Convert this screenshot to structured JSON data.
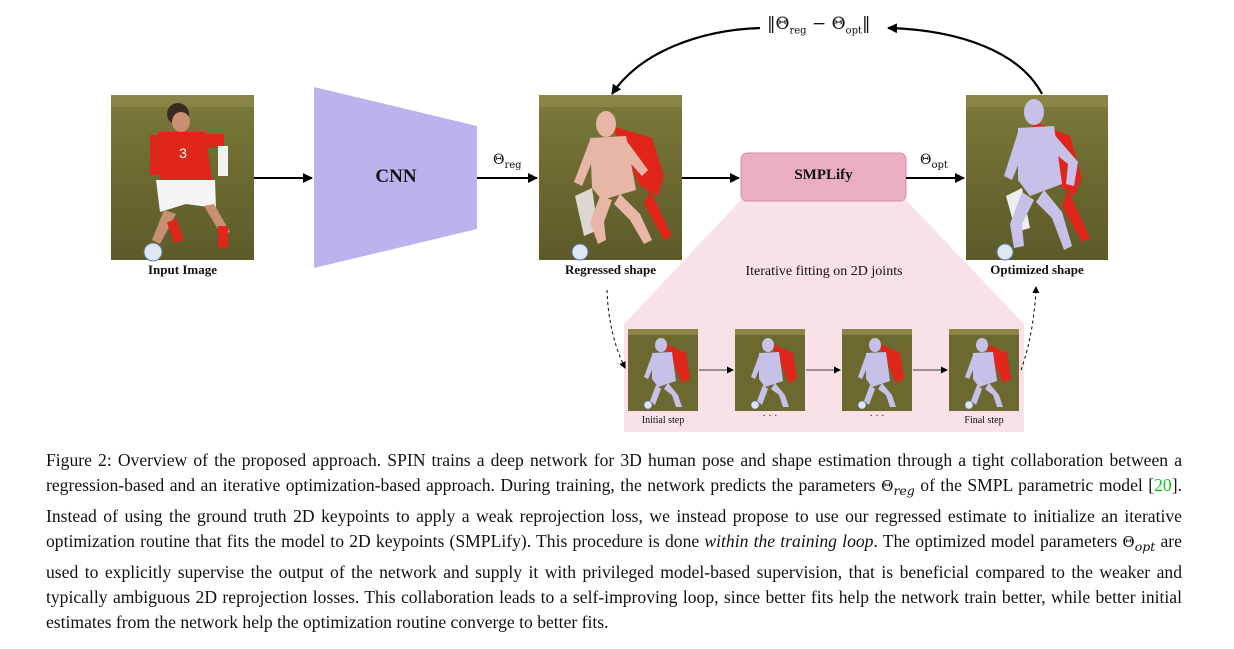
{
  "figure": {
    "input_label": "Input Image",
    "cnn_label": "CNN",
    "theta_reg_label": {
      "main": "Θ",
      "sub": "reg"
    },
    "regressed_label": "Regressed shape",
    "smplify_label": "SMPLify",
    "theta_opt_label": {
      "main": "Θ",
      "sub": "opt"
    },
    "optimized_label": "Optimized shape",
    "loss_label": {
      "open": "‖Θ",
      "sub1": "reg",
      "minus": " − Θ",
      "sub2": "opt",
      "close": "‖"
    },
    "iterative_label": "Iterative fitting on 2D joints",
    "steps": [
      {
        "label": "Initial step"
      },
      {
        "label": "· · ·"
      },
      {
        "label": "· · ·"
      },
      {
        "label": "Final step"
      }
    ],
    "colors": {
      "cnn": "#bdb1ee",
      "smplify": "#e9aec3",
      "smplify_border": "#d88aa4",
      "fitting_region": "#f8e1e7",
      "grass": "#6c6a2e",
      "jersey": "#e0261b",
      "mesh_reg": "#e8b6a6",
      "mesh_opt": "#c7c1ea"
    }
  },
  "caption": {
    "part1": "Figure 2: Overview of the proposed approach. SPIN trains a deep network for 3D human pose and shape estimation through a tight collaboration between a regression-based and an iterative optimization-based approach. During training, the network predicts the parameters ",
    "theta_reg": {
      "main": "Θ",
      "sub": "reg"
    },
    "part2": " of the SMPL parametric model [",
    "citation": "20",
    "part3": "]. Instead of using the ground truth 2D keypoints to apply a weak reprojection loss, we instead propose to use our regressed estimate to initialize an iterative optimization routine that fits the model to 2D keypoints (SMPLify). This procedure is done ",
    "emphasis": "within the training loop",
    "part4": ". The optimized model parameters ",
    "theta_opt": {
      "main": "Θ",
      "sub": "opt"
    },
    "part5": " are used to explicitly supervise the output of the network and supply it with privileged model-based supervision, that is beneficial compared to the weaker and typically ambiguous 2D reprojection losses. This collaboration leads to a self-improving loop, since better fits help the network train better, while better initial estimates from the network help the optimization routine converge to better fits."
  }
}
